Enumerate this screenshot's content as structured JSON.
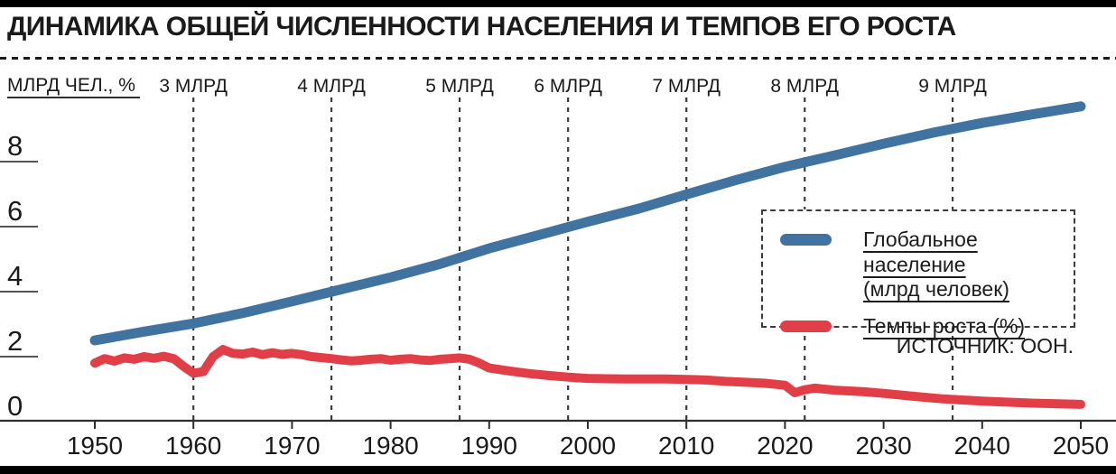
{
  "title": "ДИНАМИКА ОБЩЕЙ ЧИСЛЕННОСТИ НАСЕЛЕНИЯ И ТЕМПОВ ЕГО РОСТА",
  "unit_label": "МЛРД ЧЕЛ., %",
  "source_label": "ИСТОЧНИК: ООН.",
  "legend": {
    "population_line1": "Глобальное население",
    "population_line2": "(млрд человек)",
    "growth_label": "Темпы роста (%)"
  },
  "colors": {
    "population": "#40739F",
    "growth": "#E23E48",
    "accent_bar": "#000000",
    "text": "#1A1A1A",
    "dashed_lines": "#3C3C3C"
  },
  "chart_data": {
    "type": "line",
    "title": "ДИНАМИКА ОБЩЕЙ ЧИСЛЕННОСТИ НАСЕЛЕНИЯ И ТЕМПОВ ЕГО РОСТА",
    "ylabel": "МЛРД ЧЕЛ., %",
    "xlabel": "",
    "xlim": [
      1950,
      2050
    ],
    "ylim": [
      0,
      10
    ],
    "x_ticks": [
      1950,
      1960,
      1970,
      1980,
      1990,
      2000,
      2010,
      2020,
      2030,
      2040,
      2050
    ],
    "y_ticks": [
      0,
      2,
      4,
      6,
      8
    ],
    "grid": "vertical dashed milestone lines only",
    "legend_position": "middle-right",
    "source": "ИСТОЧНИК: ООН.",
    "milestones": [
      {
        "label": "3 МЛРД",
        "year": 1960
      },
      {
        "label": "4 МЛРД",
        "year": 1974
      },
      {
        "label": "5 МЛРД",
        "year": 1987
      },
      {
        "label": "6 МЛРД",
        "year": 1998
      },
      {
        "label": "7 МЛРД",
        "year": 2010
      },
      {
        "label": "8 МЛРД",
        "year": 2022
      },
      {
        "label": "9 МЛРД",
        "year": 2037
      }
    ],
    "series": [
      {
        "name": "Глобальное население (млрд человек)",
        "color": "#40739F",
        "x": [
          1950,
          1955,
          1960,
          1965,
          1970,
          1975,
          1980,
          1985,
          1990,
          1995,
          2000,
          2005,
          2010,
          2015,
          2020,
          2025,
          2030,
          2035,
          2040,
          2045,
          2050
        ],
        "values": [
          2.5,
          2.77,
          3.02,
          3.34,
          3.7,
          4.07,
          4.44,
          4.85,
          5.33,
          5.74,
          6.15,
          6.54,
          6.99,
          7.43,
          7.84,
          8.19,
          8.55,
          8.89,
          9.19,
          9.45,
          9.7
        ]
      },
      {
        "name": "Темпы роста (%)",
        "color": "#E23E48",
        "x": [
          1950,
          1951,
          1952,
          1953,
          1954,
          1955,
          1956,
          1957,
          1958,
          1959,
          1960,
          1961,
          1962,
          1963,
          1964,
          1965,
          1966,
          1967,
          1968,
          1969,
          1970,
          1971,
          1972,
          1973,
          1974,
          1975,
          1976,
          1977,
          1978,
          1979,
          1980,
          1981,
          1982,
          1983,
          1984,
          1985,
          1986,
          1987,
          1988,
          1989,
          1990,
          1992,
          1994,
          1996,
          1998,
          2000,
          2002,
          2004,
          2006,
          2008,
          2010,
          2012,
          2014,
          2016,
          2018,
          2020,
          2021,
          2022,
          2023,
          2025,
          2028,
          2030,
          2033,
          2036,
          2040,
          2045,
          2050
        ],
        "values": [
          1.8,
          1.94,
          1.86,
          1.96,
          1.92,
          2.0,
          1.95,
          2.01,
          1.94,
          1.7,
          1.49,
          1.54,
          2.0,
          2.22,
          2.1,
          2.08,
          2.14,
          2.06,
          2.12,
          2.07,
          2.1,
          2.06,
          2.0,
          1.97,
          1.94,
          1.9,
          1.87,
          1.89,
          1.92,
          1.94,
          1.89,
          1.92,
          1.94,
          1.9,
          1.88,
          1.92,
          1.94,
          1.96,
          1.92,
          1.8,
          1.65,
          1.56,
          1.48,
          1.42,
          1.37,
          1.33,
          1.32,
          1.31,
          1.31,
          1.31,
          1.3,
          1.28,
          1.24,
          1.21,
          1.18,
          1.12,
          0.89,
          0.98,
          1.03,
          0.97,
          0.92,
          0.87,
          0.78,
          0.7,
          0.63,
          0.57,
          0.53
        ]
      }
    ]
  }
}
